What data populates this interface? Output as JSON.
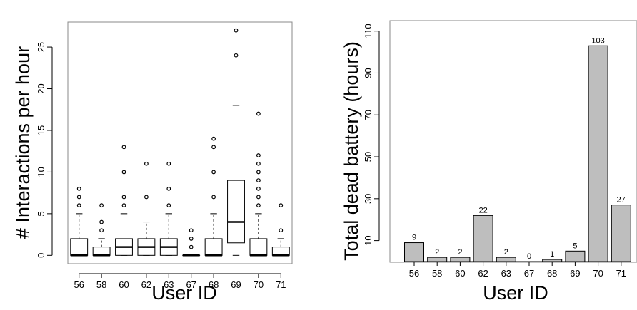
{
  "chart_data": [
    {
      "type": "box",
      "xlabel": "User ID",
      "ylabel": "# Interactions per hour",
      "ylim": [
        -1,
        28
      ],
      "yticks": [
        0,
        5,
        10,
        15,
        20,
        25
      ],
      "grid": false,
      "boxes": [
        {
          "label": "56",
          "min": 0,
          "q1": 0,
          "median": 0,
          "q3": 2,
          "max": 5,
          "outliers": [
            6,
            7,
            8
          ]
        },
        {
          "label": "58",
          "min": 0,
          "q1": 0,
          "median": 0,
          "q3": 1,
          "max": 2,
          "outliers": [
            3,
            4,
            6
          ]
        },
        {
          "label": "60",
          "min": 0,
          "q1": 0,
          "median": 1,
          "q3": 2,
          "max": 5,
          "outliers": [
            6,
            7,
            10,
            13
          ]
        },
        {
          "label": "62",
          "min": 0,
          "q1": 0,
          "median": 1,
          "q3": 2,
          "max": 4,
          "outliers": [
            7,
            11
          ]
        },
        {
          "label": "63",
          "min": 0,
          "q1": 0,
          "median": 1,
          "q3": 2,
          "max": 5,
          "outliers": [
            6,
            8,
            11
          ]
        },
        {
          "label": "67",
          "min": 0,
          "q1": 0,
          "median": 0,
          "q3": 0,
          "max": 0,
          "outliers": [
            1,
            2,
            3
          ]
        },
        {
          "label": "68",
          "min": 0,
          "q1": 0,
          "median": 0,
          "q3": 2,
          "max": 5,
          "outliers": [
            7,
            10,
            13,
            14
          ]
        },
        {
          "label": "69",
          "min": 0,
          "q1": 1.5,
          "median": 4,
          "q3": 9,
          "max": 18,
          "outliers": [
            24,
            27
          ]
        },
        {
          "label": "70",
          "min": 0,
          "q1": 0,
          "median": 0,
          "q3": 2,
          "max": 5,
          "outliers": [
            6,
            7,
            8,
            9,
            10,
            11,
            12,
            17
          ]
        },
        {
          "label": "71",
          "min": 0,
          "q1": 0,
          "median": 0,
          "q3": 1,
          "max": 2,
          "outliers": [
            3,
            6
          ]
        }
      ]
    },
    {
      "type": "bar",
      "xlabel": "User ID",
      "ylabel": "Total dead battery (hours)",
      "ylim": [
        0,
        115
      ],
      "yticks": [
        10,
        30,
        50,
        70,
        90,
        110
      ],
      "grid": false,
      "categories": [
        "56",
        "58",
        "60",
        "62",
        "63",
        "67",
        "68",
        "69",
        "70",
        "71"
      ],
      "values": [
        9,
        2,
        2,
        22,
        2,
        0,
        1,
        5,
        103,
        27
      ],
      "data_labels": [
        "9",
        "2",
        "2",
        "22",
        "2",
        "0",
        "1",
        "5",
        "103",
        "27"
      ],
      "bar_color": "#bebebe"
    }
  ]
}
